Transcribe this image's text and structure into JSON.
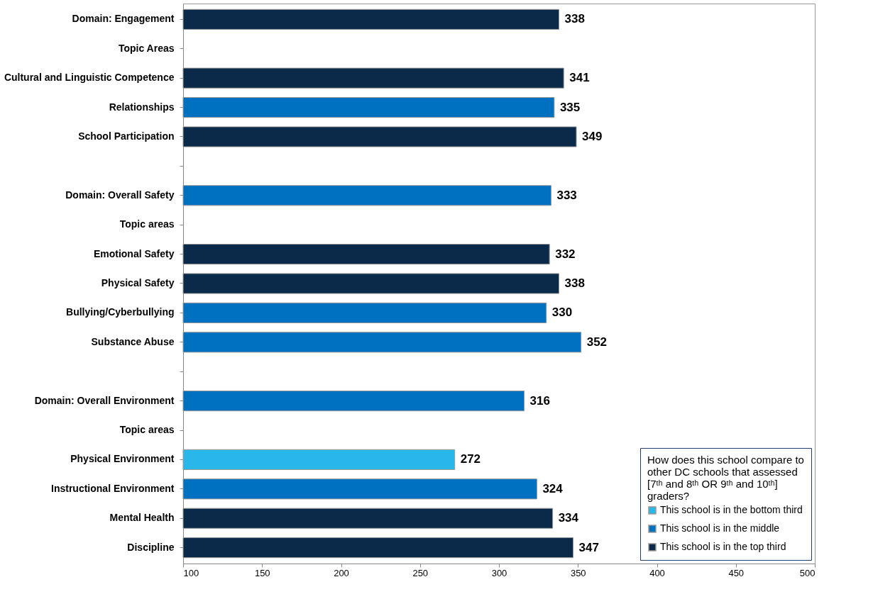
{
  "chart_data": {
    "type": "bar",
    "orientation": "horizontal",
    "categories": [
      "Domain: Engagement",
      "Topic Areas",
      "Cultural and Linguistic Competence",
      "Relationships",
      "School Participation",
      null,
      "Domain: Overall Safety",
      "Topic areas",
      "Emotional Safety",
      "Physical Safety",
      "Bullying/Cyberbullying",
      "Substance Abuse",
      null,
      "Domain: Overall Environment",
      "Topic areas",
      "Physical Environment",
      "Instructional Environment",
      "Mental Health",
      "Discipline"
    ],
    "series": [
      {
        "name": "This school is in the bottom third",
        "color": "#29b6e8",
        "values": [
          null,
          null,
          null,
          null,
          null,
          null,
          null,
          null,
          null,
          null,
          null,
          null,
          null,
          null,
          null,
          272,
          null,
          null,
          null
        ]
      },
      {
        "name": "This school is in the middle",
        "color": "#0070c0",
        "values": [
          null,
          null,
          null,
          335,
          null,
          null,
          333,
          null,
          null,
          null,
          330,
          352,
          null,
          316,
          null,
          null,
          324,
          null,
          null
        ]
      },
      {
        "name": "This school is in the top third",
        "color": "#0b2a4a",
        "values": [
          338,
          null,
          341,
          null,
          349,
          null,
          null,
          null,
          332,
          338,
          null,
          null,
          null,
          null,
          null,
          null,
          null,
          334,
          347
        ]
      }
    ],
    "legend_title": "How does this school compare to other DC schools that assessed [7ᵗʰ and 8ᵗʰ OR 9ᵗʰ and 10ᵗʰ] graders?",
    "legend": "bottom right",
    "xlim": [
      100,
      500
    ],
    "xticks": [
      100,
      150,
      200,
      250,
      300,
      350,
      400,
      450,
      500
    ],
    "grid": false,
    "data_labels": true
  }
}
